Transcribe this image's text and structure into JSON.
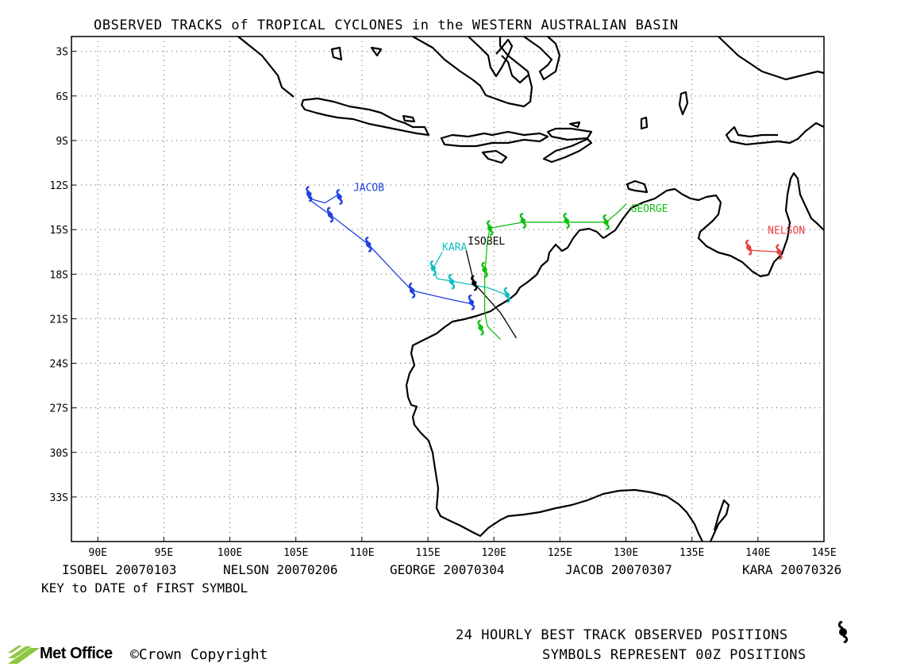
{
  "title": "OBSERVED TRACKS of TROPICAL CYCLONES in the WESTERN AUSTRALIAN BASIN",
  "lat_ticks": [
    "3S",
    "6S",
    "9S",
    "12S",
    "15S",
    "18S",
    "21S",
    "24S",
    "27S",
    "30S",
    "33S"
  ],
  "lon_ticks": [
    "90E",
    "95E",
    "100E",
    "105E",
    "110E",
    "115E",
    "120E",
    "125E",
    "130E",
    "135E",
    "140E",
    "145E"
  ],
  "keys": [
    "ISOBEL 20070103",
    "NELSON 20070206",
    "GEORGE 20070304",
    "JACOB 20070307",
    "KARA 20070326"
  ],
  "key_title": "KEY to DATE of FIRST SYMBOL",
  "footer_line1": "24 HOURLY BEST TRACK OBSERVED POSITIONS",
  "footer_line2": "SYMBOLS REPRESENT 00Z POSITIONS",
  "brand": "Met Office",
  "copyright": "©Crown Copyright",
  "colors": {
    "ISOBEL": "#000000",
    "NELSON": "#e84040",
    "GEORGE": "#10c010",
    "JACOB": "#2040e0",
    "KARA": "#10c0c0"
  },
  "map_extent": {
    "lon": [
      88,
      145
    ],
    "lat": [
      -2,
      -36
    ]
  },
  "tracks": [
    {
      "name": "JACOB",
      "label": "JACOB",
      "path": [
        [
          108.3,
          -12.6
        ],
        [
          107.2,
          -13.2
        ],
        [
          106,
          -12.9
        ],
        [
          105.8,
          -12.5
        ],
        [
          106.2,
          -13.1
        ],
        [
          107.6,
          -14.0
        ],
        [
          110.5,
          -16.0
        ],
        [
          112.5,
          -17.9
        ],
        [
          113.8,
          -19.1
        ],
        [
          116.2,
          -19.6
        ],
        [
          118.3,
          -20.0
        ]
      ],
      "symbols": [
        [
          106,
          -12.6
        ],
        [
          108.3,
          -12.8
        ],
        [
          107.6,
          -14.0
        ],
        [
          110.5,
          -16.0
        ],
        [
          113.8,
          -19.1
        ],
        [
          118.3,
          -19.9
        ]
      ]
    },
    {
      "name": "KARA",
      "label": "KARA",
      "path": [
        [
          116.1,
          -16.5
        ],
        [
          115.4,
          -17.6
        ],
        [
          115.7,
          -18.3
        ],
        [
          117,
          -18.5
        ],
        [
          119.5,
          -18.9
        ],
        [
          121,
          -19.4
        ]
      ],
      "symbols": [
        [
          115.4,
          -17.6
        ],
        [
          116.8,
          -18.5
        ],
        [
          121,
          -19.4
        ]
      ]
    },
    {
      "name": "ISOBEL",
      "label": "ISOBEL",
      "path": [
        [
          117.9,
          -16.4
        ],
        [
          118.5,
          -18.6
        ],
        [
          119.5,
          -19.6
        ],
        [
          120.5,
          -20.6
        ],
        [
          121.7,
          -22.3
        ]
      ],
      "symbols": [
        [
          118.5,
          -18.6
        ]
      ]
    },
    {
      "name": "GEORGE",
      "label": "GEORGE",
      "path": [
        [
          120.5,
          -22.4
        ],
        [
          119.5,
          -21.5
        ],
        [
          119.3,
          -20.5
        ],
        [
          119.3,
          -18.2
        ],
        [
          119.5,
          -15.8
        ],
        [
          119.7,
          -14.9
        ],
        [
          122.2,
          -14.5
        ],
        [
          125.5,
          -14.5
        ],
        [
          128.5,
          -14.5
        ],
        [
          129.3,
          -13.9
        ],
        [
          130,
          -13.3
        ]
      ],
      "symbols": [
        [
          119,
          -21.6
        ],
        [
          119.3,
          -17.7
        ],
        [
          119.7,
          -14.9
        ],
        [
          122.2,
          -14.4
        ],
        [
          125.5,
          -14.4
        ],
        [
          128.5,
          -14.5
        ]
      ]
    },
    {
      "name": "NELSON",
      "label": "NELSON",
      "path": [
        [
          139.3,
          -16.2
        ],
        [
          139.6,
          -16.4
        ],
        [
          141.6,
          -16.5
        ]
      ],
      "symbols": [
        [
          139.3,
          -16.2
        ],
        [
          141.6,
          -16.5
        ]
      ]
    }
  ]
}
